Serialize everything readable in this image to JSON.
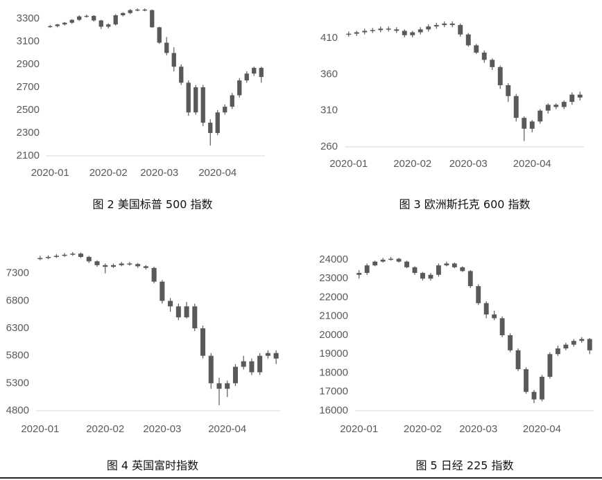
{
  "chart_data": [
    {
      "type": "candlestick",
      "title": "图 2  美国标普 500 指数",
      "color": "#595959",
      "categories": [
        "2020-01",
        null,
        null,
        null,
        null,
        null,
        null,
        null,
        "2020-02",
        null,
        null,
        null,
        null,
        null,
        null,
        "2020-03",
        null,
        null,
        null,
        null,
        null,
        null,
        null,
        "2020-04",
        null,
        null,
        null,
        null,
        null,
        null
      ],
      "open": [
        3230,
        3235,
        3250,
        3265,
        3290,
        3320,
        3325,
        3285,
        3230,
        3250,
        3330,
        3350,
        3375,
        3380,
        3375,
        3225,
        3090,
        3000,
        2880,
        2740,
        2480,
        2700,
        2390,
        2300,
        2480,
        2530,
        2630,
        2760,
        2820,
        2870
      ],
      "high": [
        3245,
        3255,
        3270,
        3295,
        3330,
        3335,
        3330,
        3290,
        3260,
        3340,
        3355,
        3385,
        3390,
        3390,
        3380,
        3230,
        3140,
        3050,
        2900,
        2760,
        2720,
        2720,
        2420,
        2500,
        2550,
        2650,
        2780,
        2840,
        2880,
        2880
      ],
      "low": [
        3220,
        3225,
        3240,
        3255,
        3280,
        3310,
        3275,
        3210,
        3215,
        3240,
        3320,
        3340,
        3365,
        3365,
        3220,
        3080,
        2980,
        2840,
        2720,
        2450,
        2460,
        2360,
        2190,
        2280,
        2460,
        2510,
        2610,
        2740,
        2800,
        2740
      ],
      "close": [
        3235,
        3250,
        3265,
        3290,
        3320,
        3325,
        3285,
        3230,
        3250,
        3330,
        3350,
        3375,
        3380,
        3375,
        3225,
        3090,
        3000,
        2880,
        2740,
        2480,
        2700,
        2390,
        2300,
        2480,
        2530,
        2630,
        2760,
        2820,
        2870,
        2790
      ],
      "ylim": [
        2100,
        3400
      ],
      "yticks": [
        2100,
        2300,
        2500,
        2700,
        2900,
        3100,
        3300
      ]
    },
    {
      "type": "candlestick",
      "title": "图 3   欧洲斯托克 600 指数",
      "color": "#595959",
      "categories": [
        "2020-01",
        null,
        null,
        null,
        null,
        null,
        null,
        null,
        "2020-02",
        null,
        null,
        null,
        null,
        null,
        null,
        "2020-03",
        null,
        null,
        null,
        null,
        null,
        null,
        null,
        "2020-04",
        null,
        null,
        null,
        null,
        null,
        null
      ],
      "open": [
        415,
        416,
        418,
        420,
        421,
        423,
        422,
        420,
        414,
        418,
        422,
        426,
        428,
        430,
        428,
        415,
        400,
        390,
        380,
        370,
        345,
        330,
        300,
        285,
        295,
        310,
        318,
        315,
        322,
        332
      ],
      "high": [
        419,
        420,
        423,
        424,
        426,
        426,
        425,
        422,
        420,
        425,
        429,
        431,
        433,
        433,
        430,
        417,
        402,
        393,
        382,
        372,
        348,
        333,
        302,
        297,
        312,
        320,
        320,
        324,
        335,
        336
      ],
      "low": [
        412,
        413,
        415,
        417,
        418,
        419,
        417,
        411,
        411,
        415,
        419,
        423,
        425,
        425,
        412,
        398,
        388,
        376,
        366,
        340,
        322,
        295,
        268,
        280,
        292,
        306,
        312,
        312,
        318,
        324
      ],
      "close": [
        416,
        418,
        420,
        421,
        423,
        422,
        420,
        414,
        418,
        422,
        426,
        428,
        430,
        428,
        415,
        400,
        390,
        380,
        370,
        345,
        330,
        300,
        285,
        295,
        310,
        318,
        315,
        322,
        332,
        328
      ],
      "ylim": [
        260,
        435
      ],
      "yticks": [
        260,
        310,
        360,
        410
      ]
    },
    {
      "type": "candlestick",
      "title": "图 4   英国富时指数",
      "color": "#595959",
      "categories": [
        "2020-01",
        null,
        null,
        null,
        null,
        null,
        null,
        null,
        "2020-02",
        null,
        null,
        null,
        null,
        null,
        null,
        "2020-03",
        null,
        null,
        null,
        null,
        null,
        null,
        null,
        "2020-04",
        null,
        null,
        null,
        null,
        null,
        null
      ],
      "open": [
        7560,
        7580,
        7600,
        7620,
        7640,
        7660,
        7600,
        7520,
        7450,
        7420,
        7450,
        7480,
        7470,
        7430,
        7400,
        7150,
        6800,
        6700,
        6500,
        6700,
        6300,
        5800,
        5300,
        5200,
        5300,
        5600,
        5700,
        5500,
        5800,
        5850
      ],
      "high": [
        7620,
        7630,
        7650,
        7670,
        7690,
        7680,
        7620,
        7540,
        7480,
        7480,
        7510,
        7510,
        7490,
        7450,
        7420,
        7180,
        6850,
        6750,
        6780,
        6750,
        6350,
        5850,
        5400,
        5350,
        5650,
        5800,
        5750,
        5850,
        5900,
        5900
      ],
      "low": [
        7540,
        7560,
        7580,
        7600,
        7620,
        7580,
        7490,
        7420,
        7300,
        7400,
        7430,
        7440,
        7400,
        7370,
        7120,
        6750,
        6600,
        6450,
        6480,
        6250,
        5750,
        5200,
        4900,
        5050,
        5250,
        5550,
        5450,
        5450,
        5750,
        5650
      ],
      "close": [
        7580,
        7600,
        7620,
        7640,
        7660,
        7600,
        7520,
        7450,
        7420,
        7450,
        7480,
        7470,
        7430,
        7400,
        7150,
        6800,
        6700,
        6500,
        6700,
        6300,
        5800,
        5300,
        5200,
        5300,
        5600,
        5700,
        5500,
        5800,
        5850,
        5750
      ],
      "ylim": [
        4800,
        7700
      ],
      "yticks": [
        4800,
        5300,
        5800,
        6300,
        6800,
        7300
      ]
    },
    {
      "type": "candlestick",
      "title": "图 5   日经 225 指数",
      "color": "#595959",
      "categories": [
        "2020-01",
        null,
        null,
        null,
        null,
        null,
        null,
        null,
        "2020-02",
        null,
        null,
        null,
        null,
        null,
        null,
        "2020-03",
        null,
        null,
        null,
        null,
        null,
        null,
        null,
        "2020-04",
        null,
        null,
        null,
        null,
        null,
        null
      ],
      "open": [
        23200,
        23300,
        23700,
        23900,
        24000,
        24050,
        23900,
        23600,
        23300,
        23000,
        23200,
        23700,
        23800,
        23600,
        23400,
        22600,
        21700,
        21100,
        20900,
        20000,
        19200,
        18200,
        17000,
        16600,
        17800,
        19000,
        19300,
        19500,
        19700,
        19800
      ],
      "high": [
        23450,
        23800,
        23950,
        24100,
        24150,
        24100,
        23950,
        23650,
        23350,
        23300,
        23800,
        23900,
        23850,
        23650,
        23450,
        22700,
        21800,
        21300,
        21000,
        20100,
        19300,
        18300,
        17100,
        17900,
        19100,
        19450,
        19600,
        19800,
        19900,
        19850
      ],
      "low": [
        23000,
        23200,
        23650,
        23850,
        23950,
        23850,
        23550,
        23200,
        22900,
        22900,
        23100,
        23650,
        23550,
        23350,
        22500,
        21600,
        20900,
        20800,
        19900,
        19100,
        18100,
        16900,
        16400,
        16500,
        17700,
        18900,
        19200,
        19400,
        19600,
        19000
      ],
      "close": [
        23300,
        23700,
        23900,
        24000,
        24050,
        23900,
        23600,
        23300,
        23000,
        23200,
        23700,
        23800,
        23600,
        23400,
        22600,
        21700,
        21100,
        20900,
        20000,
        19200,
        18200,
        17000,
        16600,
        17800,
        19000,
        19300,
        19500,
        19700,
        19800,
        19200
      ],
      "ylim": [
        16000,
        24300
      ],
      "yticks": [
        16000,
        17000,
        18000,
        19000,
        20000,
        21000,
        22000,
        23000,
        24000
      ]
    }
  ]
}
